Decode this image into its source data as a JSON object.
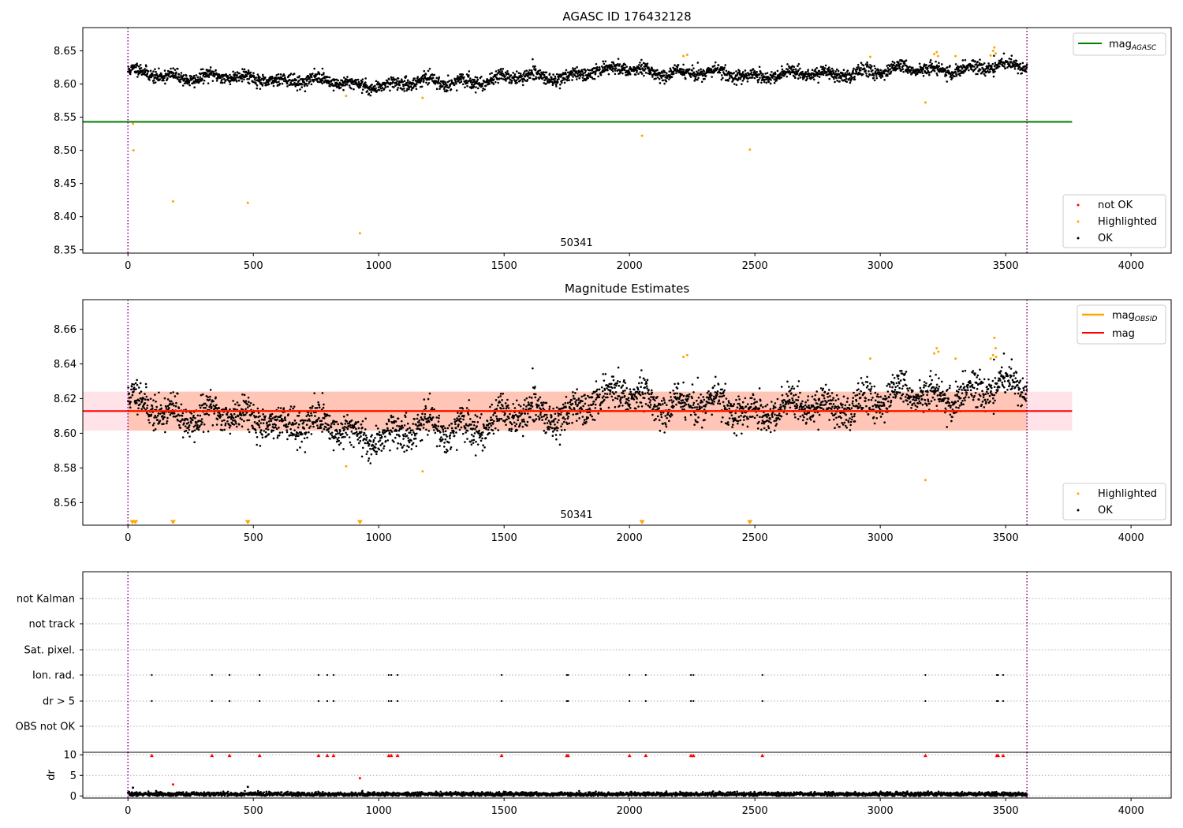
{
  "colors": {
    "ok": "#000000",
    "highlighted": "#ffa500",
    "not_ok": "#ff0000",
    "agasc_line": "#008000",
    "mag_line": "#ff0000",
    "band_outer": "#ffc0cb",
    "band_inner": "#ffa07a",
    "obs_boundary": "#800080",
    "grid": "#b0b0b0"
  },
  "chart_data": [
    {
      "id": "panel-agasc",
      "type": "scatter",
      "title": "AGASC ID 176432128",
      "xlim": [
        -180,
        4160
      ],
      "ylim": [
        8.345,
        8.685
      ],
      "xticks": [
        0,
        500,
        1000,
        1500,
        2000,
        2500,
        3000,
        3500,
        4000
      ],
      "yticks": [
        8.35,
        8.4,
        8.45,
        8.5,
        8.55,
        8.6,
        8.65
      ],
      "ytick_labels": [
        "8.35",
        "8.40",
        "8.45",
        "8.50",
        "8.55",
        "8.60",
        "8.65"
      ],
      "obs_boundaries": [
        0,
        3585
      ],
      "obsid_label": "50341",
      "obsid_label_x": 1785,
      "reference_line": {
        "name": "mag_AGASC",
        "y": 8.543,
        "x": [
          -180,
          3765
        ]
      },
      "legend_lines": [
        {
          "label": "mag",
          "sub": "AGASC",
          "color_key": "agasc_line"
        }
      ],
      "legend_points": [
        {
          "label": "not OK",
          "color_key": "not_ok"
        },
        {
          "label": "Highlighted",
          "color_key": "highlighted"
        },
        {
          "label": "OK",
          "color_key": "ok"
        }
      ],
      "ok_points": {
        "description": "about 3000 OK points, t from 0 to 3585, mag wandering between about 8.59 and 8.64",
        "x_range": [
          0,
          3585
        ],
        "n": 3000,
        "trend": [
          [
            0,
            8.617
          ],
          [
            300,
            8.61
          ],
          [
            600,
            8.608
          ],
          [
            900,
            8.6
          ],
          [
            1100,
            8.6
          ],
          [
            1400,
            8.606
          ],
          [
            1700,
            8.612
          ],
          [
            2000,
            8.623
          ],
          [
            2300,
            8.615
          ],
          [
            2700,
            8.613
          ],
          [
            3000,
            8.62
          ],
          [
            3300,
            8.623
          ],
          [
            3585,
            8.628
          ]
        ],
        "scatter": 0.006
      },
      "highlighted_points": [
        [
          20,
          8.54
        ],
        [
          22,
          8.5
        ],
        [
          180,
          8.423
        ],
        [
          478,
          8.421
        ],
        [
          870,
          8.582
        ],
        [
          925,
          8.375
        ],
        [
          1175,
          8.579
        ],
        [
          2050,
          8.522
        ],
        [
          2230,
          8.644
        ],
        [
          2215,
          8.642
        ],
        [
          2480,
          8.501
        ],
        [
          2960,
          8.641
        ],
        [
          3180,
          8.572
        ],
        [
          3215,
          8.645
        ],
        [
          3225,
          8.648
        ],
        [
          3230,
          8.642
        ],
        [
          3300,
          8.642
        ],
        [
          3440,
          8.643
        ],
        [
          3450,
          8.65
        ],
        [
          3455,
          8.655
        ],
        [
          3460,
          8.646
        ]
      ],
      "not_ok_points": []
    },
    {
      "id": "panel-magnitude",
      "type": "scatter",
      "title": "Magnitude Estimates",
      "xlim": [
        -180,
        4160
      ],
      "ylim": [
        8.547,
        8.677
      ],
      "xticks": [
        0,
        500,
        1000,
        1500,
        2000,
        2500,
        3000,
        3500,
        4000
      ],
      "yticks": [
        8.56,
        8.58,
        8.6,
        8.62,
        8.64,
        8.66
      ],
      "ytick_labels": [
        "8.56",
        "8.58",
        "8.60",
        "8.62",
        "8.64",
        "8.66"
      ],
      "obs_boundaries": [
        0,
        3585
      ],
      "obsid_label": "50341",
      "obsid_label_x": 1785,
      "band_outer": {
        "x": [
          -180,
          3765
        ],
        "y": [
          8.6015,
          8.624
        ]
      },
      "band_inner": {
        "x": [
          0,
          3585
        ],
        "y": [
          8.6015,
          8.624
        ]
      },
      "mag_line": {
        "name": "mag",
        "y": 8.6128,
        "x": [
          -180,
          3765
        ]
      },
      "mag_obsid_line": {
        "name": "mag_OBSID",
        "y": 8.6128,
        "x": [
          0,
          3585
        ]
      },
      "legend_lines": [
        {
          "label": "mag",
          "sub": "OBSID",
          "color_key": "highlighted"
        },
        {
          "label": "mag",
          "sub": "",
          "color_key": "mag_line"
        }
      ],
      "legend_points": [
        {
          "label": "Highlighted",
          "color_key": "highlighted"
        },
        {
          "label": "OK",
          "color_key": "ok"
        }
      ],
      "ok_points": {
        "description": "same ~3000 OK points as top panel, zoomed",
        "x_range": [
          0,
          3585
        ],
        "n": 3000,
        "trend": [
          [
            0,
            8.617
          ],
          [
            300,
            8.61
          ],
          [
            600,
            8.608
          ],
          [
            900,
            8.6
          ],
          [
            1100,
            8.6
          ],
          [
            1400,
            8.606
          ],
          [
            1700,
            8.612
          ],
          [
            2000,
            8.623
          ],
          [
            2300,
            8.615
          ],
          [
            2700,
            8.613
          ],
          [
            3000,
            8.62
          ],
          [
            3300,
            8.623
          ],
          [
            3585,
            8.628
          ]
        ],
        "scatter": 0.006
      },
      "highlighted_points": [
        [
          870,
          8.581
        ],
        [
          1175,
          8.578
        ],
        [
          2215,
          8.644
        ],
        [
          2230,
          8.645
        ],
        [
          2960,
          8.643
        ],
        [
          3180,
          8.573
        ],
        [
          3215,
          8.646
        ],
        [
          3225,
          8.649
        ],
        [
          3232,
          8.647
        ],
        [
          3300,
          8.643
        ],
        [
          3440,
          8.643
        ],
        [
          3450,
          8.645
        ],
        [
          3455,
          8.655
        ],
        [
          3460,
          8.649
        ],
        [
          3462,
          8.644
        ]
      ],
      "off_scale_markers_x": [
        18,
        30,
        180,
        478,
        925,
        2050,
        2480
      ]
    },
    {
      "id": "panel-flags",
      "type": "scatter",
      "title": "",
      "xlim": [
        -180,
        4160
      ],
      "obs_boundaries": [
        0,
        3585
      ],
      "categories": [
        "OBS not OK",
        "dr > 5",
        "Ion. rad.",
        "Sat. pixel.",
        "not track",
        "not Kalman"
      ],
      "flag_points": {
        "dr > 5": [
          95,
          335,
          405,
          525,
          760,
          795,
          820,
          1040,
          1050,
          1075,
          1490,
          1750,
          1755,
          2000,
          2065,
          2245,
          2255,
          2530,
          3180,
          3465,
          3470,
          3490
        ],
        "Ion. rad.": [
          95,
          335,
          405,
          525,
          760,
          795,
          820,
          1040,
          1050,
          1075,
          1490,
          1750,
          1755,
          2000,
          2065,
          2245,
          2255,
          2530,
          3180,
          3465,
          3470,
          3490
        ]
      }
    },
    {
      "id": "panel-dr",
      "type": "scatter",
      "ylabel": "dr",
      "xlim": [
        -180,
        4160
      ],
      "ylim": [
        -0.5,
        10.6
      ],
      "xticks": [
        0,
        500,
        1000,
        1500,
        2000,
        2500,
        3000,
        3500,
        4000
      ],
      "yticks": [
        0,
        5,
        10
      ],
      "ytick_labels": [
        "0",
        "5",
        "10"
      ],
      "obs_boundaries": [
        0,
        3585
      ],
      "ok_points": {
        "description": "~3000 black points with dr between 0 and about 1",
        "x_range": [
          0,
          3585
        ],
        "n": 3000,
        "mean": 0.45,
        "scatter": 0.25
      },
      "clipped_not_ok_y": 9.8,
      "clipped_not_ok_x": [
        95,
        335,
        405,
        525,
        760,
        795,
        820,
        1040,
        1050,
        1075,
        1490,
        1750,
        1755,
        2000,
        2065,
        2245,
        2255,
        2530,
        3180,
        3465,
        3470,
        3490
      ],
      "not_ok_points": [
        [
          180,
          2.8
        ],
        [
          925,
          4.3
        ]
      ],
      "highlighted_points": [
        [
          478,
          2.2
        ],
        [
          20,
          2.0
        ]
      ]
    }
  ]
}
